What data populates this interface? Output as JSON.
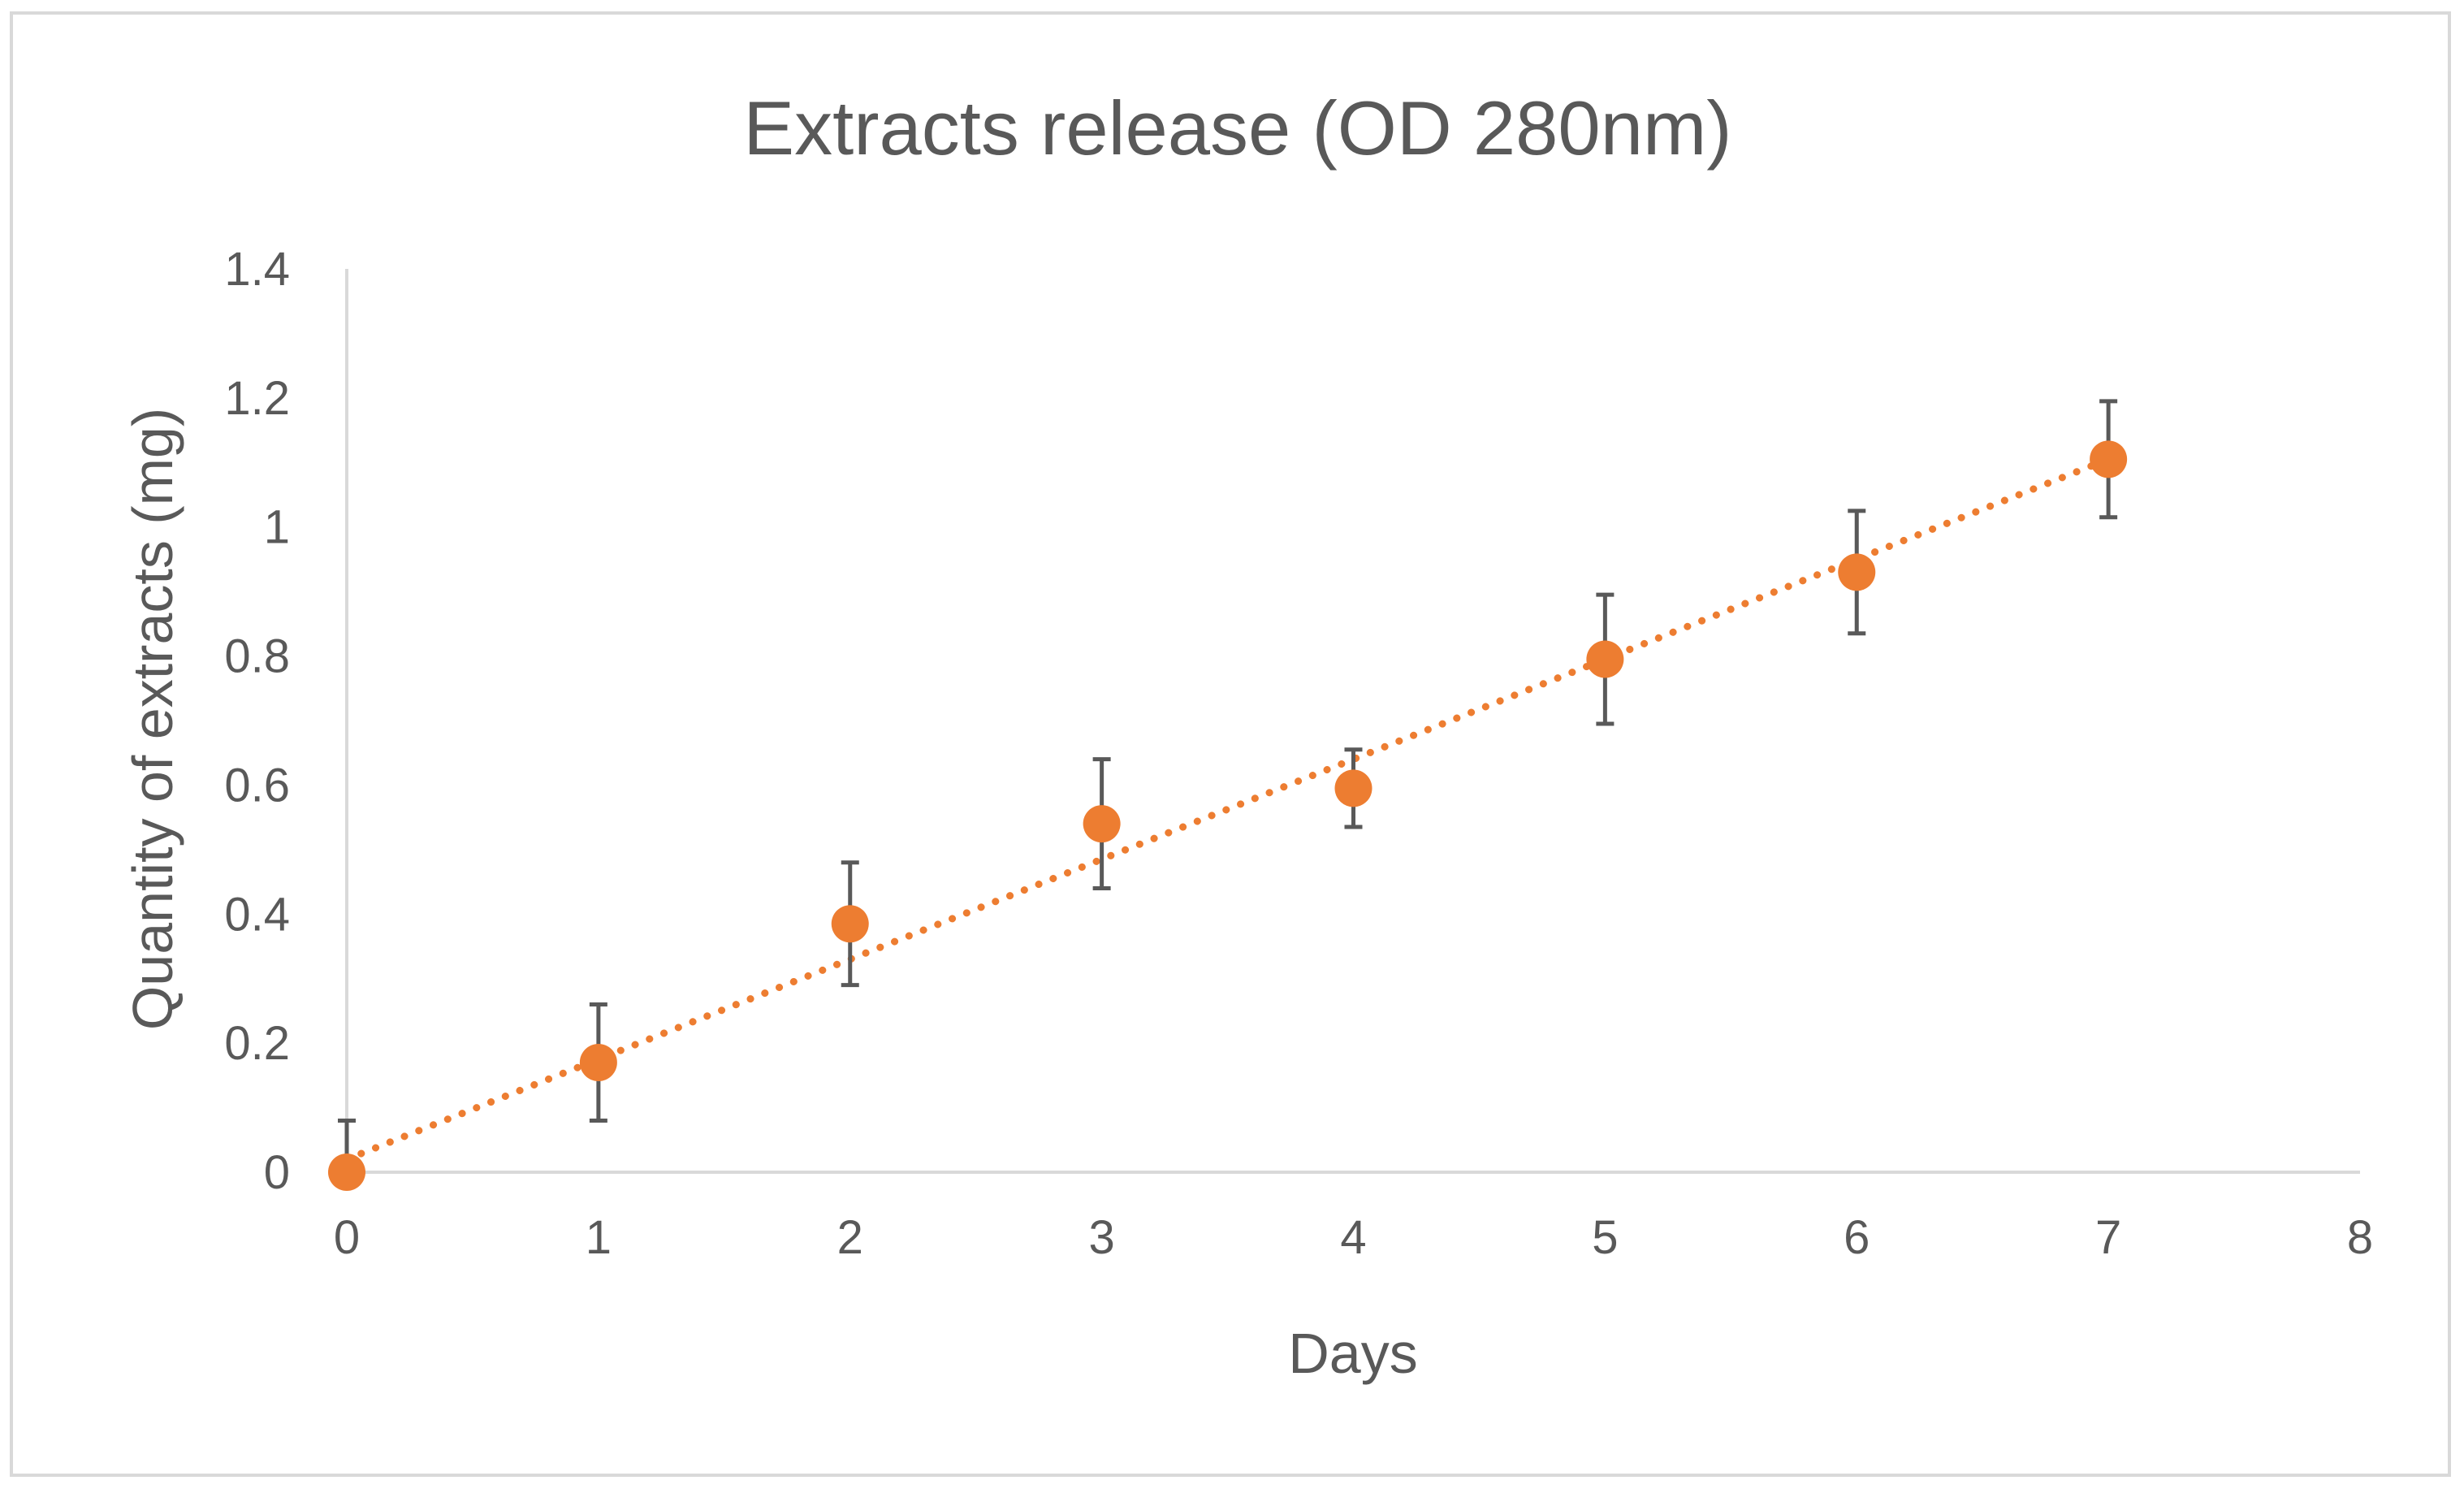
{
  "chart_data": {
    "type": "scatter",
    "title": "Extracts release (OD 280nm)",
    "xlabel": "Days",
    "ylabel": "Quantity of extracts (mg)",
    "xlim": [
      0,
      8
    ],
    "ylim": [
      0,
      1.4
    ],
    "x_ticks": [
      "0",
      "1",
      "2",
      "3",
      "4",
      "5",
      "6",
      "7",
      "8"
    ],
    "y_ticks": [
      "0",
      "0.2",
      "0.4",
      "0.6",
      "0.8",
      "1",
      "1.2",
      "1.4"
    ],
    "grid": false,
    "legend": "none",
    "series": [
      {
        "x": [
          0,
          1,
          2,
          3,
          4,
          5,
          6,
          7
        ],
        "y": [
          0.0,
          0.17,
          0.385,
          0.54,
          0.595,
          0.795,
          0.93,
          1.105
        ],
        "error": [
          0.08,
          0.09,
          0.095,
          0.1,
          0.06,
          0.1,
          0.095,
          0.09
        ],
        "color": "#ED7D31",
        "error_color": "#595959"
      }
    ],
    "trendline": {
      "type": "linear",
      "style": "dotted",
      "color": "#ED7D31",
      "x_range": [
        0,
        7
      ],
      "y_start": 0.02,
      "y_end": 1.105
    },
    "axis_color": "#d9d9d9"
  }
}
